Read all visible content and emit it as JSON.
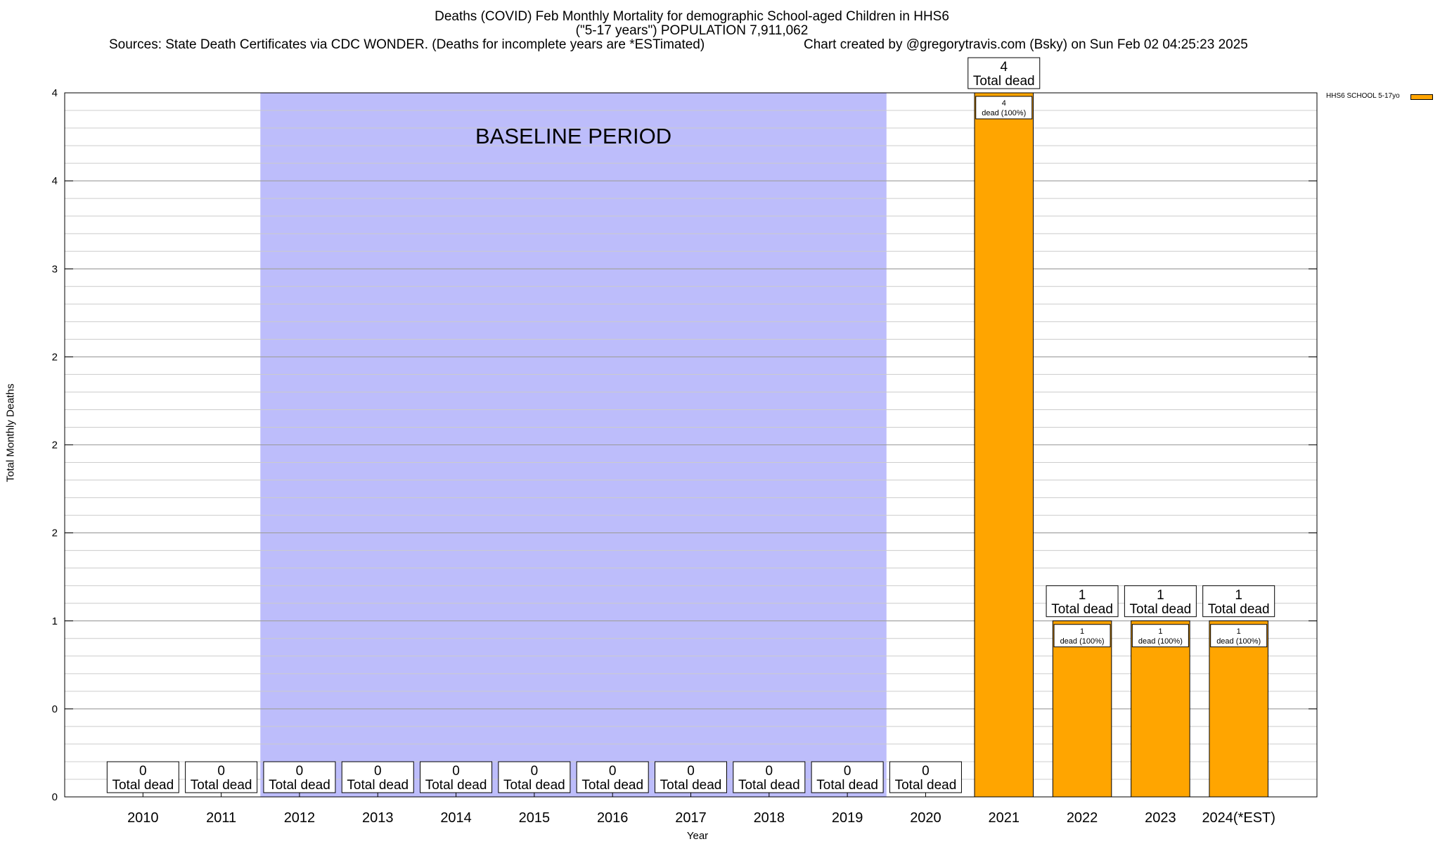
{
  "colors": {
    "bar": "#FFA500",
    "baseline_band": "#BDBDFB",
    "grid": "#CCCCCC",
    "axis": "#000000"
  },
  "chart_data": {
    "type": "bar",
    "title_lines": [
      "Deaths (COVID) Feb Monthly Mortality for demographic School-aged Children in HHS6",
      "(\"5-17 years\") POPULATION 7,911,062"
    ],
    "source": "Sources: State Death Certificates via CDC WONDER. (Deaths for incomplete years are *ESTimated)",
    "credit": "Chart created by @gregorytravis.com (Bsky) on Sun Feb 02 04:25:23 2025",
    "xlabel": "Year",
    "ylabel": "Total Monthly Deaths",
    "categories": [
      "2010",
      "2011",
      "2012",
      "2013",
      "2014",
      "2015",
      "2016",
      "2017",
      "2018",
      "2019",
      "2020",
      "2021",
      "2022",
      "2023",
      "2024(*EST)"
    ],
    "values": [
      0,
      0,
      0,
      0,
      0,
      0,
      0,
      0,
      0,
      0,
      0,
      4,
      1,
      1,
      1
    ],
    "ylim": [
      0,
      4
    ],
    "yticks": [
      {
        "value": 0,
        "label": "0"
      },
      {
        "value": 0.5,
        "label": "0"
      },
      {
        "value": 1,
        "label": "1"
      },
      {
        "value": 1.5,
        "label": "2"
      },
      {
        "value": 2,
        "label": "2"
      },
      {
        "value": 2.5,
        "label": "2"
      },
      {
        "value": 3,
        "label": "3"
      },
      {
        "value": 3.5,
        "label": "4"
      },
      {
        "value": 4,
        "label": "4"
      }
    ],
    "total_label": "Total dead",
    "bar_label": "dead (100%)",
    "baseline": {
      "label": "BASELINE PERIOD",
      "from": "2012",
      "to": "2019"
    },
    "series": [
      {
        "name": "HHS6 SCHOOL 5-17yo"
      }
    ],
    "legend_position": "top-right",
    "grid": true
  }
}
